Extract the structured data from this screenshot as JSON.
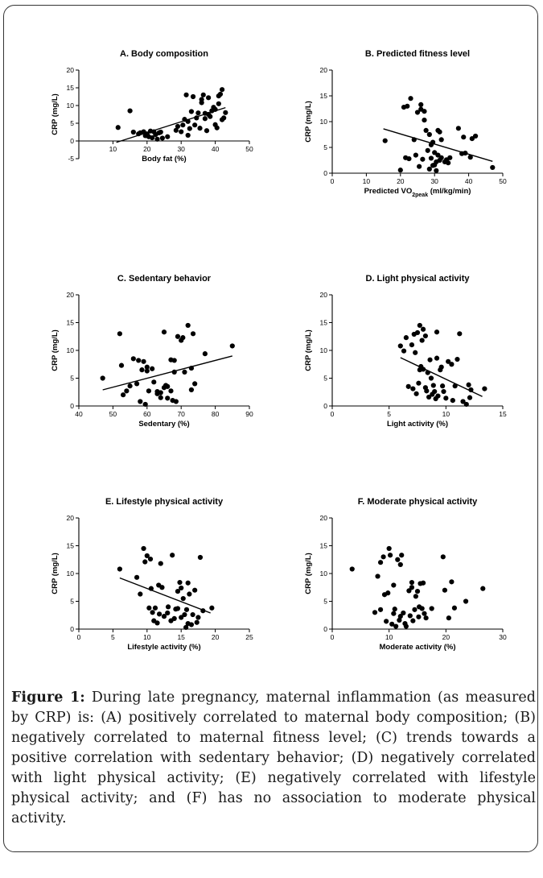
{
  "chart_data": [
    {
      "type": "scatter",
      "title": "A. Body composition",
      "xlabel": "Body fat (%)",
      "ylabel": "CRP (mg/L)",
      "xlim": [
        0,
        50
      ],
      "ylim": [
        -5,
        20
      ],
      "xticks": [
        10,
        20,
        30,
        40,
        50
      ],
      "yticks": [
        -5,
        0,
        5,
        10,
        15,
        20
      ],
      "trend": [
        [
          11,
          -0.4
        ],
        [
          43,
          9.4
        ]
      ],
      "points": [
        [
          11.5,
          3.8
        ],
        [
          15,
          8.5
        ],
        [
          16,
          2.5
        ],
        [
          17.5,
          2
        ],
        [
          18,
          2.3
        ],
        [
          19,
          2.6
        ],
        [
          19.5,
          1.5
        ],
        [
          20,
          2
        ],
        [
          20.5,
          1.2
        ],
        [
          21,
          2.8
        ],
        [
          21.5,
          0.9
        ],
        [
          22,
          2.6
        ],
        [
          22.5,
          1.8
        ],
        [
          23,
          0.5
        ],
        [
          23.5,
          2.3
        ],
        [
          24,
          2.5
        ],
        [
          24.5,
          0.8
        ],
        [
          26,
          1.2
        ],
        [
          28.5,
          3
        ],
        [
          29,
          4.1
        ],
        [
          30,
          2.6
        ],
        [
          30.5,
          4.5
        ],
        [
          31,
          6.1
        ],
        [
          31.5,
          13
        ],
        [
          32,
          1.6
        ],
        [
          32,
          5.5
        ],
        [
          32.5,
          3.5
        ],
        [
          33,
          8.3
        ],
        [
          33.5,
          12.5
        ],
        [
          34,
          4.5
        ],
        [
          34.5,
          6.5
        ],
        [
          35,
          7.9
        ],
        [
          35.5,
          3.6
        ],
        [
          36,
          10.8
        ],
        [
          36,
          11.7
        ],
        [
          36.5,
          13
        ],
        [
          37,
          6.3
        ],
        [
          37,
          7.8
        ],
        [
          37.5,
          2.9
        ],
        [
          38,
          7.5
        ],
        [
          38,
          12.2
        ],
        [
          38.5,
          6.9
        ],
        [
          39,
          8.5
        ],
        [
          39.5,
          9.5
        ],
        [
          40,
          4.6
        ],
        [
          40,
          8.9
        ],
        [
          40.5,
          3.7
        ],
        [
          41,
          10.5
        ],
        [
          41,
          12.7
        ],
        [
          41.5,
          13.2
        ],
        [
          42,
          6
        ],
        [
          42,
          14.5
        ],
        [
          42.5,
          6.5
        ],
        [
          43,
          8
        ]
      ]
    },
    {
      "type": "scatter",
      "title": "B. Predicted fitness level",
      "xlabel_main": "Predicted VO",
      "xlabel_sub": "2peak",
      "xlabel_tail": " (ml/kg/min)",
      "ylabel": "CRP (mg/L)",
      "xlim": [
        0,
        50
      ],
      "ylim": [
        0,
        20
      ],
      "xticks": [
        0,
        10,
        20,
        30,
        40,
        50
      ],
      "yticks": [
        0,
        5,
        10,
        15,
        20
      ],
      "trend": [
        [
          15,
          8.6
        ],
        [
          47,
          2.3
        ]
      ],
      "points": [
        [
          15.5,
          6.3
        ],
        [
          20,
          0.6
        ],
        [
          21,
          12.8
        ],
        [
          21.5,
          3
        ],
        [
          22,
          13
        ],
        [
          22.5,
          2.8
        ],
        [
          23,
          14.5
        ],
        [
          24,
          6.5
        ],
        [
          24.5,
          3.5
        ],
        [
          25,
          11.8
        ],
        [
          25.5,
          1.3
        ],
        [
          26,
          12.4
        ],
        [
          26,
          13.3
        ],
        [
          26.5,
          2.7
        ],
        [
          27,
          12
        ],
        [
          27,
          10.3
        ],
        [
          27.5,
          8.3
        ],
        [
          28,
          4.4
        ],
        [
          28.5,
          0.8
        ],
        [
          28.5,
          7.5
        ],
        [
          29,
          5.5
        ],
        [
          29,
          2.9
        ],
        [
          29.5,
          1.5
        ],
        [
          29.5,
          6
        ],
        [
          30,
          1.6
        ],
        [
          30,
          4
        ],
        [
          30.5,
          0.5
        ],
        [
          30.5,
          2.2
        ],
        [
          31,
          3.5
        ],
        [
          31,
          8.3
        ],
        [
          31.5,
          2.5
        ],
        [
          31.5,
          8
        ],
        [
          32,
          6.5
        ],
        [
          32,
          3
        ],
        [
          33,
          2.2
        ],
        [
          33.5,
          2.6
        ],
        [
          34,
          2
        ],
        [
          34.5,
          3
        ],
        [
          37,
          8.7
        ],
        [
          38,
          3.8
        ],
        [
          38.5,
          7
        ],
        [
          39,
          3.9
        ],
        [
          40.5,
          3.1
        ],
        [
          41,
          6.7
        ],
        [
          42,
          7.2
        ],
        [
          47,
          1.1
        ]
      ]
    },
    {
      "type": "scatter",
      "title": "C. Sedentary behavior",
      "xlabel": "Sedentary (%)",
      "ylabel": "CRP (mg/L)",
      "xlim": [
        40,
        90
      ],
      "ylim": [
        0,
        20
      ],
      "xticks": [
        40,
        50,
        60,
        70,
        80,
        90
      ],
      "yticks": [
        0,
        5,
        10,
        15,
        20
      ],
      "trend": [
        [
          47,
          2.9
        ],
        [
          85,
          9
        ]
      ],
      "points": [
        [
          47,
          5
        ],
        [
          52,
          13
        ],
        [
          52.5,
          7.3
        ],
        [
          53,
          2
        ],
        [
          54,
          2.7
        ],
        [
          55,
          3.6
        ],
        [
          56,
          8.5
        ],
        [
          57,
          4
        ],
        [
          57.5,
          8.2
        ],
        [
          58,
          0.8
        ],
        [
          58.5,
          6.5
        ],
        [
          59,
          8
        ],
        [
          59.5,
          0.3
        ],
        [
          60,
          7
        ],
        [
          60,
          6.3
        ],
        [
          60.5,
          2.7
        ],
        [
          61.5,
          6.7
        ],
        [
          62,
          4.3
        ],
        [
          63,
          2.2
        ],
        [
          63,
          2.6
        ],
        [
          64,
          2.4
        ],
        [
          64,
          1.5
        ],
        [
          65,
          3.3
        ],
        [
          65.5,
          3.7
        ],
        [
          65,
          13.3
        ],
        [
          66,
          1.4
        ],
        [
          66,
          3.5
        ],
        [
          67,
          2.7
        ],
        [
          67,
          8.3
        ],
        [
          67.5,
          1
        ],
        [
          68,
          8.2
        ],
        [
          68,
          6.1
        ],
        [
          68.5,
          0.8
        ],
        [
          69,
          12.5
        ],
        [
          70,
          11.8
        ],
        [
          70.5,
          12.3
        ],
        [
          71,
          6.1
        ],
        [
          72,
          14.5
        ],
        [
          73,
          6.8
        ],
        [
          73,
          2.9
        ],
        [
          73.5,
          13
        ],
        [
          74,
          4
        ],
        [
          77,
          9.4
        ],
        [
          85,
          10.8
        ]
      ]
    },
    {
      "type": "scatter",
      "title": "D. Light physical activity",
      "xlabel": "Light activity (%)",
      "ylabel": "CRP (mg/L)",
      "xlim": [
        0,
        15
      ],
      "ylim": [
        0,
        20
      ],
      "xticks": [
        0,
        5,
        10,
        15
      ],
      "yticks": [
        0,
        5,
        10,
        15,
        20
      ],
      "trend": [
        [
          6,
          8.7
        ],
        [
          13.2,
          1.7
        ]
      ],
      "points": [
        [
          6,
          10.8
        ],
        [
          6.3,
          9.9
        ],
        [
          6.5,
          12.3
        ],
        [
          6.7,
          3.5
        ],
        [
          7,
          11
        ],
        [
          7.1,
          3.1
        ],
        [
          7.2,
          12.9
        ],
        [
          7.3,
          9.6
        ],
        [
          7.4,
          2.2
        ],
        [
          7.5,
          13.2
        ],
        [
          7.6,
          4.1
        ],
        [
          7.7,
          14.5
        ],
        [
          7.7,
          6.5
        ],
        [
          7.8,
          7.1
        ],
        [
          7.9,
          11.8
        ],
        [
          8,
          6.6
        ],
        [
          8,
          13.8
        ],
        [
          8.2,
          12.6
        ],
        [
          8.2,
          3.3
        ],
        [
          8.3,
          2.7
        ],
        [
          8.4,
          6
        ],
        [
          8.5,
          1.6
        ],
        [
          8.6,
          8.3
        ],
        [
          8.7,
          5
        ],
        [
          8.8,
          2.1
        ],
        [
          8.9,
          3.7
        ],
        [
          9,
          2.6
        ],
        [
          9.1,
          1.3
        ],
        [
          9.2,
          13.3
        ],
        [
          9.2,
          8.6
        ],
        [
          9.3,
          1.8
        ],
        [
          9.5,
          6.5
        ],
        [
          9.6,
          7
        ],
        [
          9.7,
          3.6
        ],
        [
          9.8,
          2.6
        ],
        [
          10,
          1.4
        ],
        [
          10.2,
          8
        ],
        [
          10.5,
          7.5
        ],
        [
          10.6,
          1
        ],
        [
          10.8,
          3.6
        ],
        [
          11,
          8.4
        ],
        [
          11.2,
          13
        ],
        [
          11.5,
          0.8
        ],
        [
          11.8,
          0.3
        ],
        [
          12,
          3.8
        ],
        [
          12.1,
          1.5
        ],
        [
          12.2,
          2.9
        ],
        [
          13.4,
          3.1
        ]
      ]
    },
    {
      "type": "scatter",
      "title": "E. Lifestyle physical activity",
      "xlabel": "Lifestyle activity (%)",
      "ylabel": "CRP (mg/L)",
      "xlim": [
        0,
        25
      ],
      "ylim": [
        0,
        20
      ],
      "xticks": [
        0,
        5,
        10,
        15,
        20,
        25
      ],
      "yticks": [
        0,
        5,
        10,
        15,
        20
      ],
      "trend": [
        [
          6,
          9.2
        ],
        [
          19.3,
          2.9
        ]
      ],
      "points": [
        [
          6,
          10.8
        ],
        [
          8.5,
          9.3
        ],
        [
          9,
          6.3
        ],
        [
          9.5,
          14.5
        ],
        [
          9.7,
          12.1
        ],
        [
          10,
          13.2
        ],
        [
          10.3,
          3.8
        ],
        [
          10.5,
          12.6
        ],
        [
          10.6,
          7.3
        ],
        [
          10.8,
          3
        ],
        [
          11,
          1.5
        ],
        [
          11.2,
          3.8
        ],
        [
          11.5,
          1.1
        ],
        [
          11.7,
          7.9
        ],
        [
          11.8,
          2.7
        ],
        [
          12,
          11.8
        ],
        [
          12.2,
          7.5
        ],
        [
          12.5,
          2.3
        ],
        [
          13,
          2.9
        ],
        [
          13.1,
          4
        ],
        [
          13.5,
          1.5
        ],
        [
          13.7,
          13.3
        ],
        [
          14,
          1.9
        ],
        [
          14.2,
          3.6
        ],
        [
          14.5,
          3.7
        ],
        [
          14.5,
          6.8
        ],
        [
          14.8,
          8.4
        ],
        [
          15,
          7.4
        ],
        [
          15,
          2.1
        ],
        [
          15.3,
          5.5
        ],
        [
          15.5,
          2.6
        ],
        [
          15.7,
          0.3
        ],
        [
          15.8,
          3.5
        ],
        [
          16,
          8.3
        ],
        [
          16,
          1
        ],
        [
          16.2,
          6.3
        ],
        [
          16.5,
          0.8
        ],
        [
          16.7,
          2.6
        ],
        [
          17,
          7
        ],
        [
          17.3,
          1.2
        ],
        [
          17.5,
          2.1
        ],
        [
          17.8,
          12.9
        ],
        [
          18.2,
          3.3
        ],
        [
          19.5,
          3.8
        ]
      ]
    },
    {
      "type": "scatter",
      "title": "F. Moderate physical activity",
      "xlabel": "Moderate activity (%)",
      "ylabel": "CRP (mg/L)",
      "xlim": [
        0,
        30
      ],
      "ylim": [
        0,
        20
      ],
      "xticks": [
        0,
        10,
        20,
        30
      ],
      "yticks": [
        0,
        5,
        10,
        15,
        20
      ],
      "trend": null,
      "points": [
        [
          3.5,
          10.8
        ],
        [
          7.5,
          3
        ],
        [
          8,
          9.5
        ],
        [
          8.5,
          12
        ],
        [
          8.5,
          3.5
        ],
        [
          9,
          13
        ],
        [
          9.2,
          6.2
        ],
        [
          9.5,
          1.4
        ],
        [
          9.8,
          6.5
        ],
        [
          10,
          14.5
        ],
        [
          10.2,
          13.3
        ],
        [
          10.5,
          0.9
        ],
        [
          10.8,
          2.8
        ],
        [
          10.8,
          7.9
        ],
        [
          11,
          3.6
        ],
        [
          11.2,
          0.5
        ],
        [
          11.5,
          12.5
        ],
        [
          11.8,
          1.6
        ],
        [
          12,
          11.6
        ],
        [
          12.2,
          13.3
        ],
        [
          12,
          2.3
        ],
        [
          12.5,
          2.9
        ],
        [
          12.8,
          1
        ],
        [
          13,
          0.5
        ],
        [
          13.5,
          6.9
        ],
        [
          13.7,
          2.4
        ],
        [
          14,
          8.4
        ],
        [
          14,
          7.5
        ],
        [
          14.2,
          1.5
        ],
        [
          14.5,
          3.5
        ],
        [
          14.7,
          5.9
        ],
        [
          15,
          6.8
        ],
        [
          15.2,
          2.2
        ],
        [
          15.3,
          4
        ],
        [
          15.5,
          8.2
        ],
        [
          15.8,
          3.7
        ],
        [
          16,
          8.3
        ],
        [
          16.2,
          2.8
        ],
        [
          16.5,
          2
        ],
        [
          17.5,
          3.7
        ],
        [
          19.5,
          13
        ],
        [
          19.8,
          7
        ],
        [
          20.5,
          2
        ],
        [
          21,
          8.5
        ],
        [
          21.5,
          3.8
        ],
        [
          23.5,
          5
        ],
        [
          26.5,
          7.3
        ]
      ]
    }
  ],
  "caption": {
    "label": "Figure 1:",
    "text": " During late pregnancy, maternal inflammation (as measured by CRP) is: (A) positively correlated to maternal body composition; (B) negatively correlated to maternal fitness level; (C) trends towards a positive correlation with sedentary behavior; (D) negatively correlated with light physical activity; (E) negatively correlated with lifestyle physical activity; and (F) has no association to moderate physical activity."
  }
}
